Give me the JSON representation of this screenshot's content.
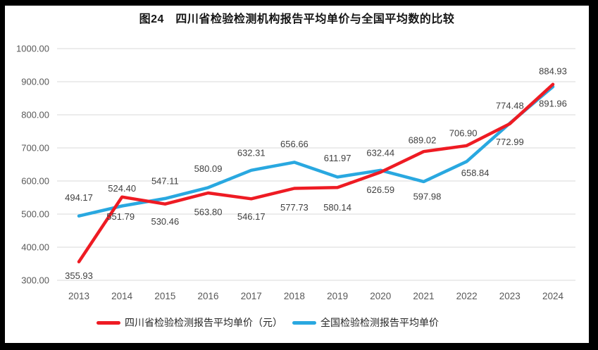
{
  "chart_data": {
    "type": "line",
    "title": "图24　四川省检验检测机构报告平均单价与全国平均数的比较",
    "xlabel": "",
    "ylabel": "",
    "categories": [
      "2013",
      "2014",
      "2015",
      "2016",
      "2017",
      "2018",
      "2019",
      "2020",
      "2021",
      "2022",
      "2023",
      "2024"
    ],
    "series": [
      {
        "name": "四川省检验检测报告平均单价（元）",
        "color": "#EE1B23",
        "values": [
          355.93,
          551.79,
          530.46,
          563.8,
          546.17,
          577.73,
          580.14,
          626.59,
          689.02,
          706.9,
          772.99,
          891.96
        ],
        "label_offsets": [
          [
            0,
            20
          ],
          [
            -2,
            28
          ],
          [
            0,
            25
          ],
          [
            0,
            27
          ],
          [
            0,
            25
          ],
          [
            0,
            27
          ],
          [
            0,
            28
          ],
          [
            0,
            25
          ],
          [
            -2,
            -16
          ],
          [
            -5,
            -18
          ],
          [
            0,
            26
          ],
          [
            0,
            27
          ]
        ]
      },
      {
        "name": "全国检验检测报告平均单价",
        "color": "#29A8E0",
        "values": [
          494.17,
          524.4,
          547.11,
          580.09,
          632.31,
          656.66,
          611.97,
          632.44,
          597.98,
          658.84,
          774.48,
          884.93
        ],
        "label_offsets": [
          [
            0,
            -26
          ],
          [
            0,
            -25
          ],
          [
            0,
            -25
          ],
          [
            0,
            -27
          ],
          [
            0,
            -25
          ],
          [
            0,
            -26
          ],
          [
            0,
            -27
          ],
          [
            0,
            -25
          ],
          [
            5,
            21
          ],
          [
            12,
            16
          ],
          [
            0,
            -25
          ],
          [
            0,
            -22
          ]
        ]
      }
    ],
    "ylim": [
      300,
      1000
    ],
    "ytick_step": 100,
    "grid": true,
    "legend_position": "bottom",
    "value_decimals": 2
  },
  "style": {
    "background": "#ffffff",
    "frame_color": "#000000",
    "grid_color": "#D9D9D9",
    "axis_text_color": "#595959",
    "data_label_color": "#404040",
    "title_color": "#151515",
    "sichuan_color": "#EE1B23",
    "national_color": "#29A8E0"
  }
}
